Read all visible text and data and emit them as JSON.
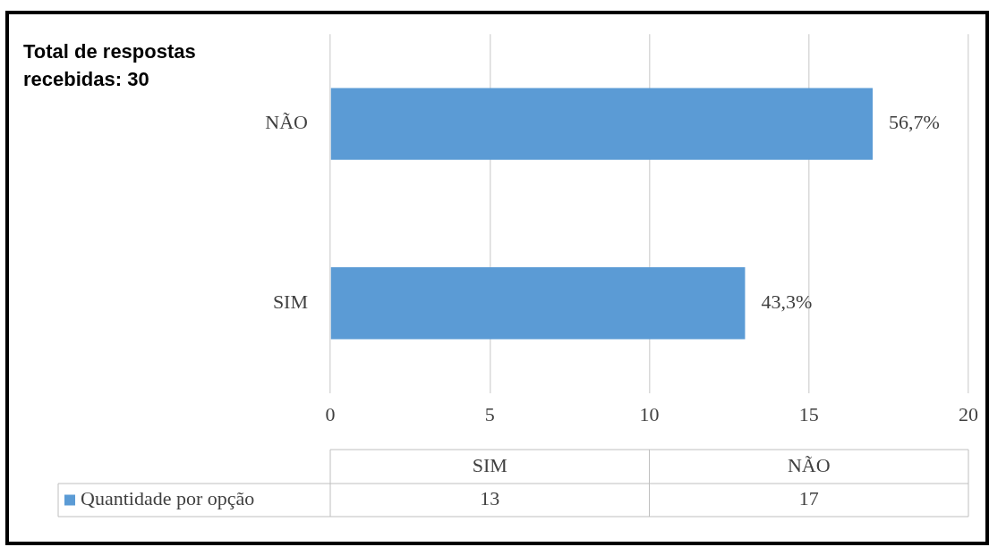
{
  "chart_data": {
    "type": "bar",
    "orientation": "horizontal",
    "categories": [
      "NÃO",
      "SIM"
    ],
    "series": [
      {
        "name": "Quantidade por opção",
        "color": "#5b9bd5",
        "values": [
          17,
          13
        ]
      }
    ],
    "xlim": [
      0,
      20
    ],
    "xticks": [
      0,
      5,
      10,
      15,
      20
    ],
    "grid": "x",
    "legend": "bottom",
    "annotations": [
      "Total de respostas recebidas: 30",
      {
        "text": "56,7%",
        "x": 17,
        "y": "NÃO"
      },
      {
        "text": "43,3%",
        "x": 13,
        "y": "SIM"
      },
      "13",
      "17"
    ]
  }
}
